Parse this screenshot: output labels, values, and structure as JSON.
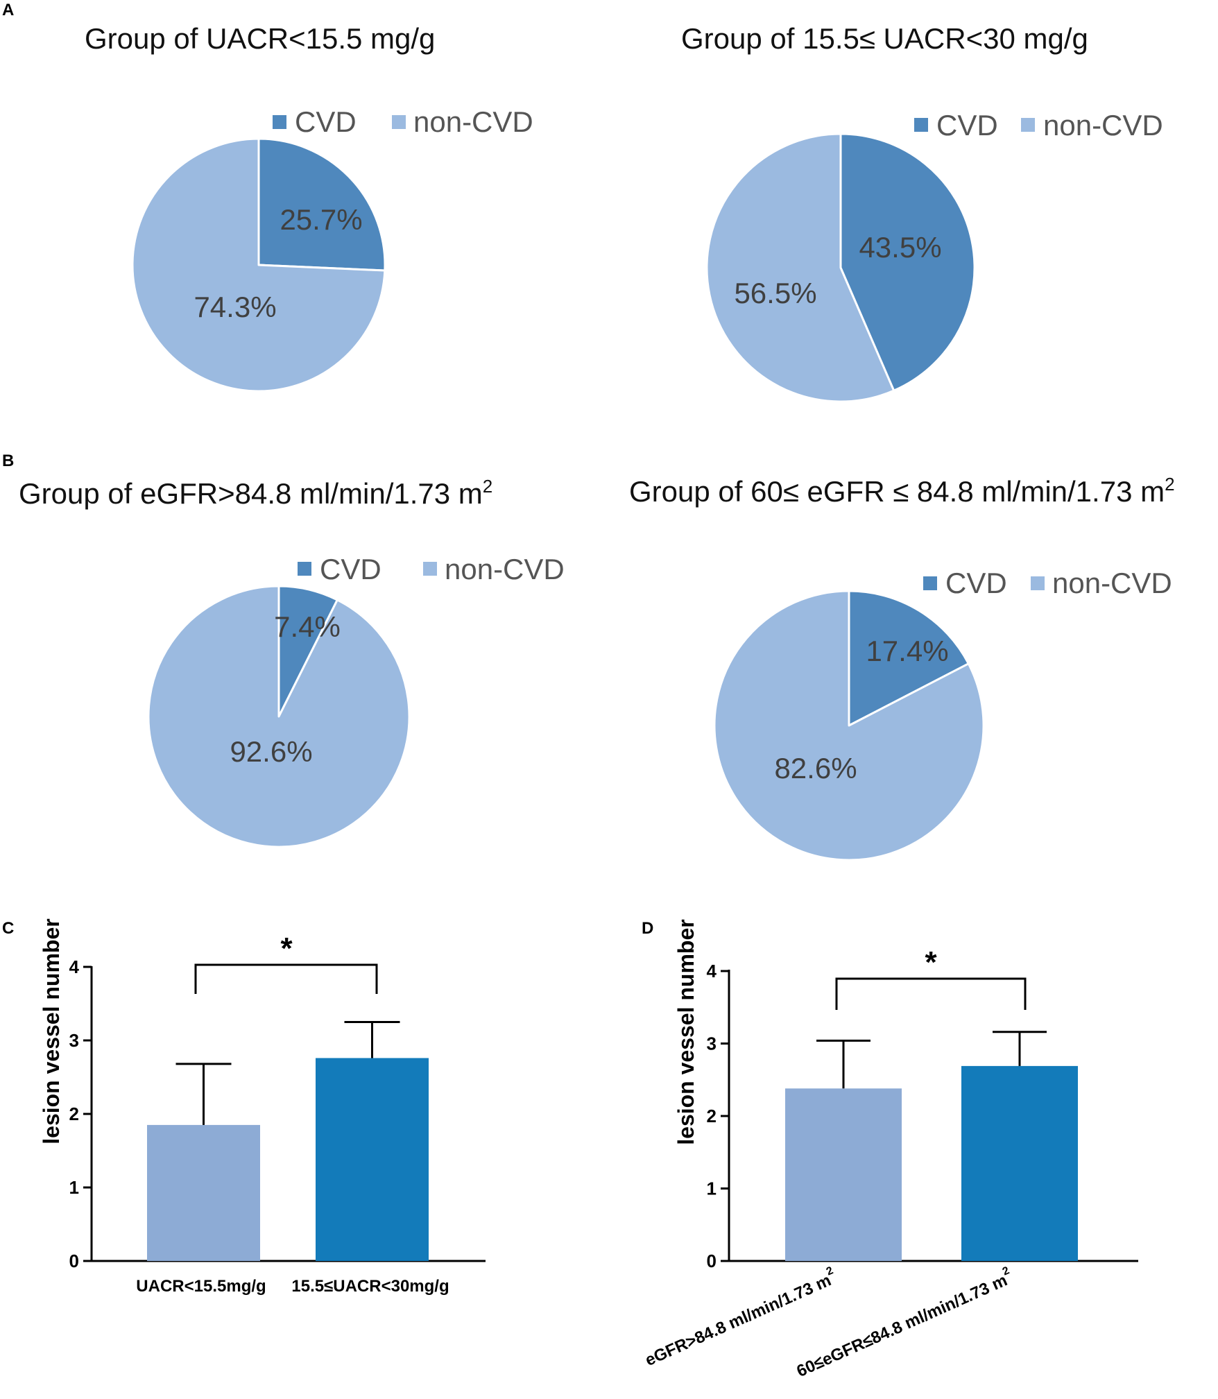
{
  "colors": {
    "cvd": "#4f88bd",
    "non_cvd": "#9bbae0",
    "bar_light": "#8dabd5",
    "bar_dark": "#137bba",
    "axis": "#000000"
  },
  "panels": {
    "a": "A",
    "b": "B",
    "c": "C",
    "d": "D"
  },
  "chart_data": [
    {
      "type": "pie",
      "panel": "A",
      "title": "Group of UACR<15.5 mg/g",
      "legend": [
        "CVD",
        "non-CVD"
      ],
      "slices": [
        {
          "name": "CVD",
          "value": 25.7,
          "label": "25.7%"
        },
        {
          "name": "non-CVD",
          "value": 74.3,
          "label": "74.3%"
        }
      ]
    },
    {
      "type": "pie",
      "panel": "A",
      "title": "Group of 15.5≤ UACR<30 mg/g",
      "legend": [
        "CVD",
        "non-CVD"
      ],
      "slices": [
        {
          "name": "CVD",
          "value": 43.5,
          "label": "43.5%"
        },
        {
          "name": "non-CVD",
          "value": 56.5,
          "label": "56.5%"
        }
      ]
    },
    {
      "type": "pie",
      "panel": "B",
      "title": "Group of eGFR>84.8 ml/min/1.73 m",
      "title_sup": "2",
      "legend": [
        "CVD",
        "non-CVD"
      ],
      "slices": [
        {
          "name": "CVD",
          "value": 7.4,
          "label": "7.4%"
        },
        {
          "name": "non-CVD",
          "value": 92.6,
          "label": "92.6%"
        }
      ]
    },
    {
      "type": "pie",
      "panel": "B",
      "title": "Group of 60≤ eGFR ≤ 84.8 ml/min/1.73 m",
      "title_sup": "2",
      "legend": [
        "CVD",
        "non-CVD"
      ],
      "slices": [
        {
          "name": "CVD",
          "value": 17.4,
          "label": "17.4%"
        },
        {
          "name": "non-CVD",
          "value": 82.6,
          "label": "82.6%"
        }
      ]
    },
    {
      "type": "bar",
      "panel": "C",
      "ylabel": "lesion vessel number",
      "ylim": [
        0,
        4
      ],
      "yticks": [
        "0",
        "1",
        "2",
        "3",
        "4"
      ],
      "categories": [
        "UACR<15.5mg/g",
        "15.5≤UACR<30mg/g"
      ],
      "values": [
        1.85,
        2.76
      ],
      "errors": [
        0.83,
        0.49
      ],
      "significance": "*"
    },
    {
      "type": "bar",
      "panel": "D",
      "ylabel": "lesion vessel number",
      "ylim": [
        0,
        4
      ],
      "yticks": [
        "0",
        "1",
        "2",
        "3",
        "4"
      ],
      "categories": [
        "eGFR>84.8 ml/min/1.73 m",
        "60≤eGFR≤84.8 ml/min/1.73 m"
      ],
      "category_sup": "2",
      "values": [
        2.38,
        2.69
      ],
      "errors": [
        0.66,
        0.47
      ],
      "significance": "*"
    }
  ]
}
